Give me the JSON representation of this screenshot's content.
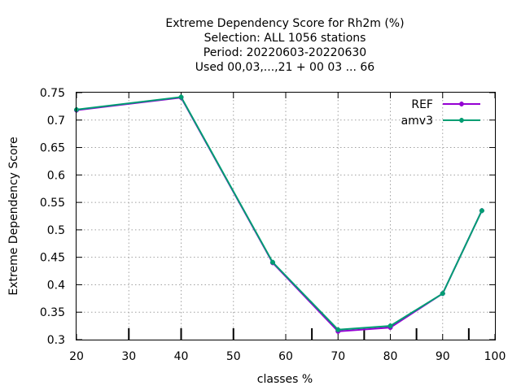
{
  "chart_data": {
    "type": "line",
    "title_lines": [
      "Extreme Dependency Score  for Rh2m (%)",
      "Selection: ALL   1056 stations",
      "Period: 20220603-20220630",
      "Used  00,03,...,21  + 00 03 ... 66"
    ],
    "xlabel": "classes %",
    "ylabel": "Extreme Dependency Score",
    "xlim": [
      20,
      100
    ],
    "ylim": [
      0.3,
      0.75
    ],
    "xticks": [
      20,
      30,
      40,
      50,
      60,
      70,
      80,
      90,
      100
    ],
    "xtick_labels": [
      "20",
      "30",
      "40",
      "50",
      "60",
      "70",
      "80",
      "90",
      "100"
    ],
    "yticks": [
      0.3,
      0.35,
      0.4,
      0.45,
      0.5,
      0.55,
      0.6,
      0.65,
      0.7,
      0.75
    ],
    "ytick_labels": [
      "0.3",
      "0.35",
      "0.4",
      "0.45",
      "0.5",
      "0.55",
      "0.6",
      "0.65",
      "0.7",
      "0.75"
    ],
    "minor_xticks": [
      30,
      40,
      50,
      65,
      75,
      85,
      95
    ],
    "grid": true,
    "legend_position": "top-right",
    "series": [
      {
        "name": "REF",
        "color": "#9400d3",
        "x": [
          20,
          40,
          57.5,
          70,
          80,
          90,
          97.5
        ],
        "y": [
          0.718,
          0.741,
          0.44,
          0.315,
          0.322,
          0.384,
          0.535
        ]
      },
      {
        "name": "amv3",
        "color": "#009e73",
        "x": [
          20,
          40,
          57.5,
          70,
          80,
          90,
          97.5
        ],
        "y": [
          0.719,
          0.742,
          0.441,
          0.318,
          0.325,
          0.384,
          0.535
        ]
      }
    ]
  }
}
